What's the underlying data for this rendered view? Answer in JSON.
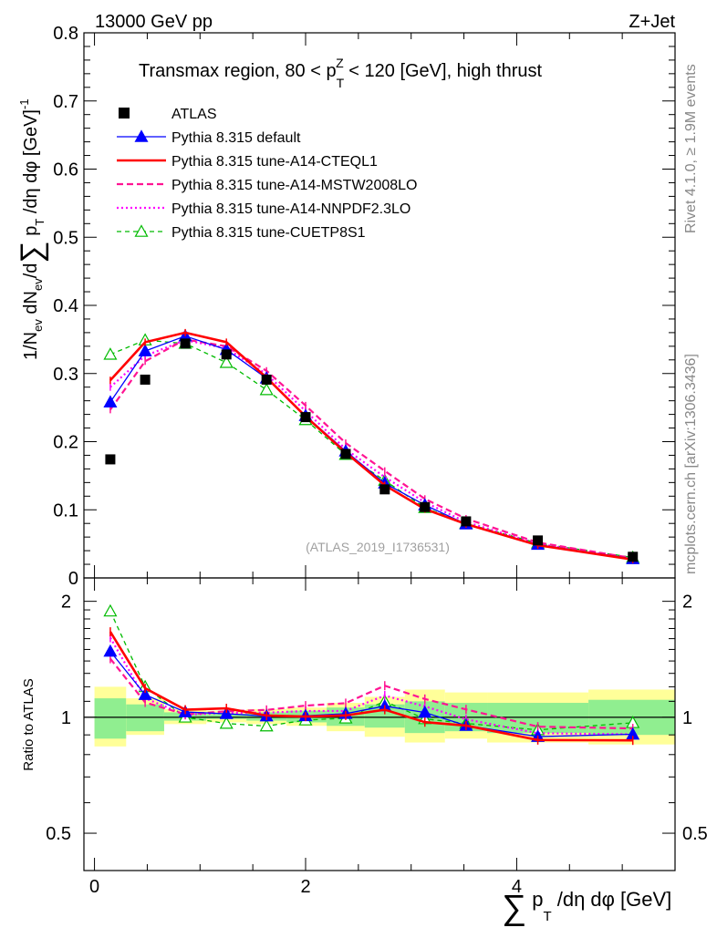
{
  "header": {
    "energy": "13000 GeV pp",
    "process": "Z+Jet",
    "title_main": "Transmax region, 80 < p",
    "title_sup": "Z",
    "title_sub": "T",
    "title_rest": " < 120 [GeV], high thrust",
    "analysis_id": "(ATLAS_2019_I1736531)",
    "side_rivet": "Rivet 4.1.0, ≥ 1.9M events",
    "side_mcplots": "mcplots.cern.ch [arXiv:1306.3436]"
  },
  "axes": {
    "ylabel_top": "1/N_ev dN_ev/d∑ p_T /dη dφ [GeV]^-1",
    "ylabel_ratio": "Ratio to ATLAS",
    "xlabel": "∑ p_T /dη dφ [GeV]",
    "y_top_ticks": [
      "0",
      "0.1",
      "0.2",
      "0.3",
      "0.4",
      "0.5",
      "0.6",
      "0.7",
      "0.8"
    ],
    "y_ratio_ticks": [
      "0.5",
      "1",
      "2"
    ],
    "x_ticks": [
      "0",
      "2",
      "4"
    ]
  },
  "chart_data": {
    "type": "line",
    "title": "Transmax region, 80 < pT^Z < 120 [GeV], high thrust",
    "xlabel": "∑ pT /dη dφ [GeV]",
    "ylabel": "1/Nev dNev/d∑ pT /dη dφ [GeV]^-1",
    "xlim": [
      -0.1,
      5.5
    ],
    "ylim": [
      0,
      0.8
    ],
    "ratio_ylim": [
      0.4,
      2.3
    ],
    "ratio_scale": "log",
    "x": [
      0.15,
      0.48,
      0.86,
      1.25,
      1.63,
      2.0,
      2.38,
      2.75,
      3.13,
      3.52,
      4.2,
      5.1
    ],
    "bin_edges": [
      0,
      0.3,
      0.66,
      1.06,
      1.44,
      1.82,
      2.2,
      2.56,
      2.94,
      3.32,
      3.72,
      4.68,
      5.5
    ],
    "series": [
      {
        "name": "ATLAS",
        "color": "#000000",
        "style": "data",
        "values": [
          0.174,
          0.291,
          0.344,
          0.328,
          0.291,
          0.236,
          0.182,
          0.13,
          0.104,
          0.083,
          0.055,
          0.031
        ]
      },
      {
        "name": "Pythia 8.315 default",
        "color": "#0000ff",
        "style": "solid-thin",
        "marker": "triangle-filled",
        "values": [
          0.258,
          0.333,
          0.355,
          0.335,
          0.293,
          0.238,
          0.186,
          0.139,
          0.107,
          0.079,
          0.049,
          0.028
        ]
      },
      {
        "name": "Pythia 8.315 tune-A14-CTEQL1",
        "color": "#ff0000",
        "style": "solid-thick",
        "marker": "none",
        "values": [
          0.29,
          0.346,
          0.36,
          0.346,
          0.294,
          0.237,
          0.184,
          0.136,
          0.101,
          0.079,
          0.048,
          0.027
        ]
      },
      {
        "name": "Pythia 8.315 tune-A14-MSTW2008LO",
        "color": "#ff1493",
        "style": "dashed",
        "marker": "none",
        "values": [
          0.247,
          0.318,
          0.35,
          0.34,
          0.304,
          0.253,
          0.198,
          0.157,
          0.116,
          0.087,
          0.052,
          0.029
        ]
      },
      {
        "name": "Pythia 8.315 tune-A14-NNPDF2.3LO",
        "color": "#ff00ff",
        "style": "dotted",
        "marker": "none",
        "values": [
          0.28,
          0.326,
          0.349,
          0.337,
          0.299,
          0.245,
          0.189,
          0.148,
          0.111,
          0.082,
          0.05,
          0.028
        ]
      },
      {
        "name": "Pythia 8.315 tune-CUETP8S1",
        "color": "#00bb00",
        "style": "dashed-thin",
        "marker": "triangle-open",
        "values": [
          0.328,
          0.349,
          0.344,
          0.316,
          0.276,
          0.232,
          0.181,
          0.143,
          0.103,
          0.08,
          0.051,
          0.03
        ]
      }
    ],
    "ratio_bands": {
      "inner_lo": [
        0.88,
        0.92,
        0.98,
        0.99,
        0.98,
        0.97,
        0.95,
        0.94,
        0.91,
        0.92,
        0.91,
        0.9
      ],
      "inner_hi": [
        1.12,
        1.08,
        1.03,
        1.02,
        1.03,
        1.04,
        1.06,
        1.08,
        1.1,
        1.09,
        1.09,
        1.11
      ],
      "outer_lo": [
        0.84,
        0.9,
        0.96,
        0.97,
        0.96,
        0.95,
        0.92,
        0.89,
        0.86,
        0.88,
        0.86,
        0.85
      ],
      "outer_hi": [
        1.2,
        1.12,
        1.05,
        1.04,
        1.05,
        1.06,
        1.09,
        1.13,
        1.18,
        1.16,
        1.16,
        1.18
      ],
      "inner_color": "#90ee90",
      "outer_color": "#ffff99"
    }
  }
}
